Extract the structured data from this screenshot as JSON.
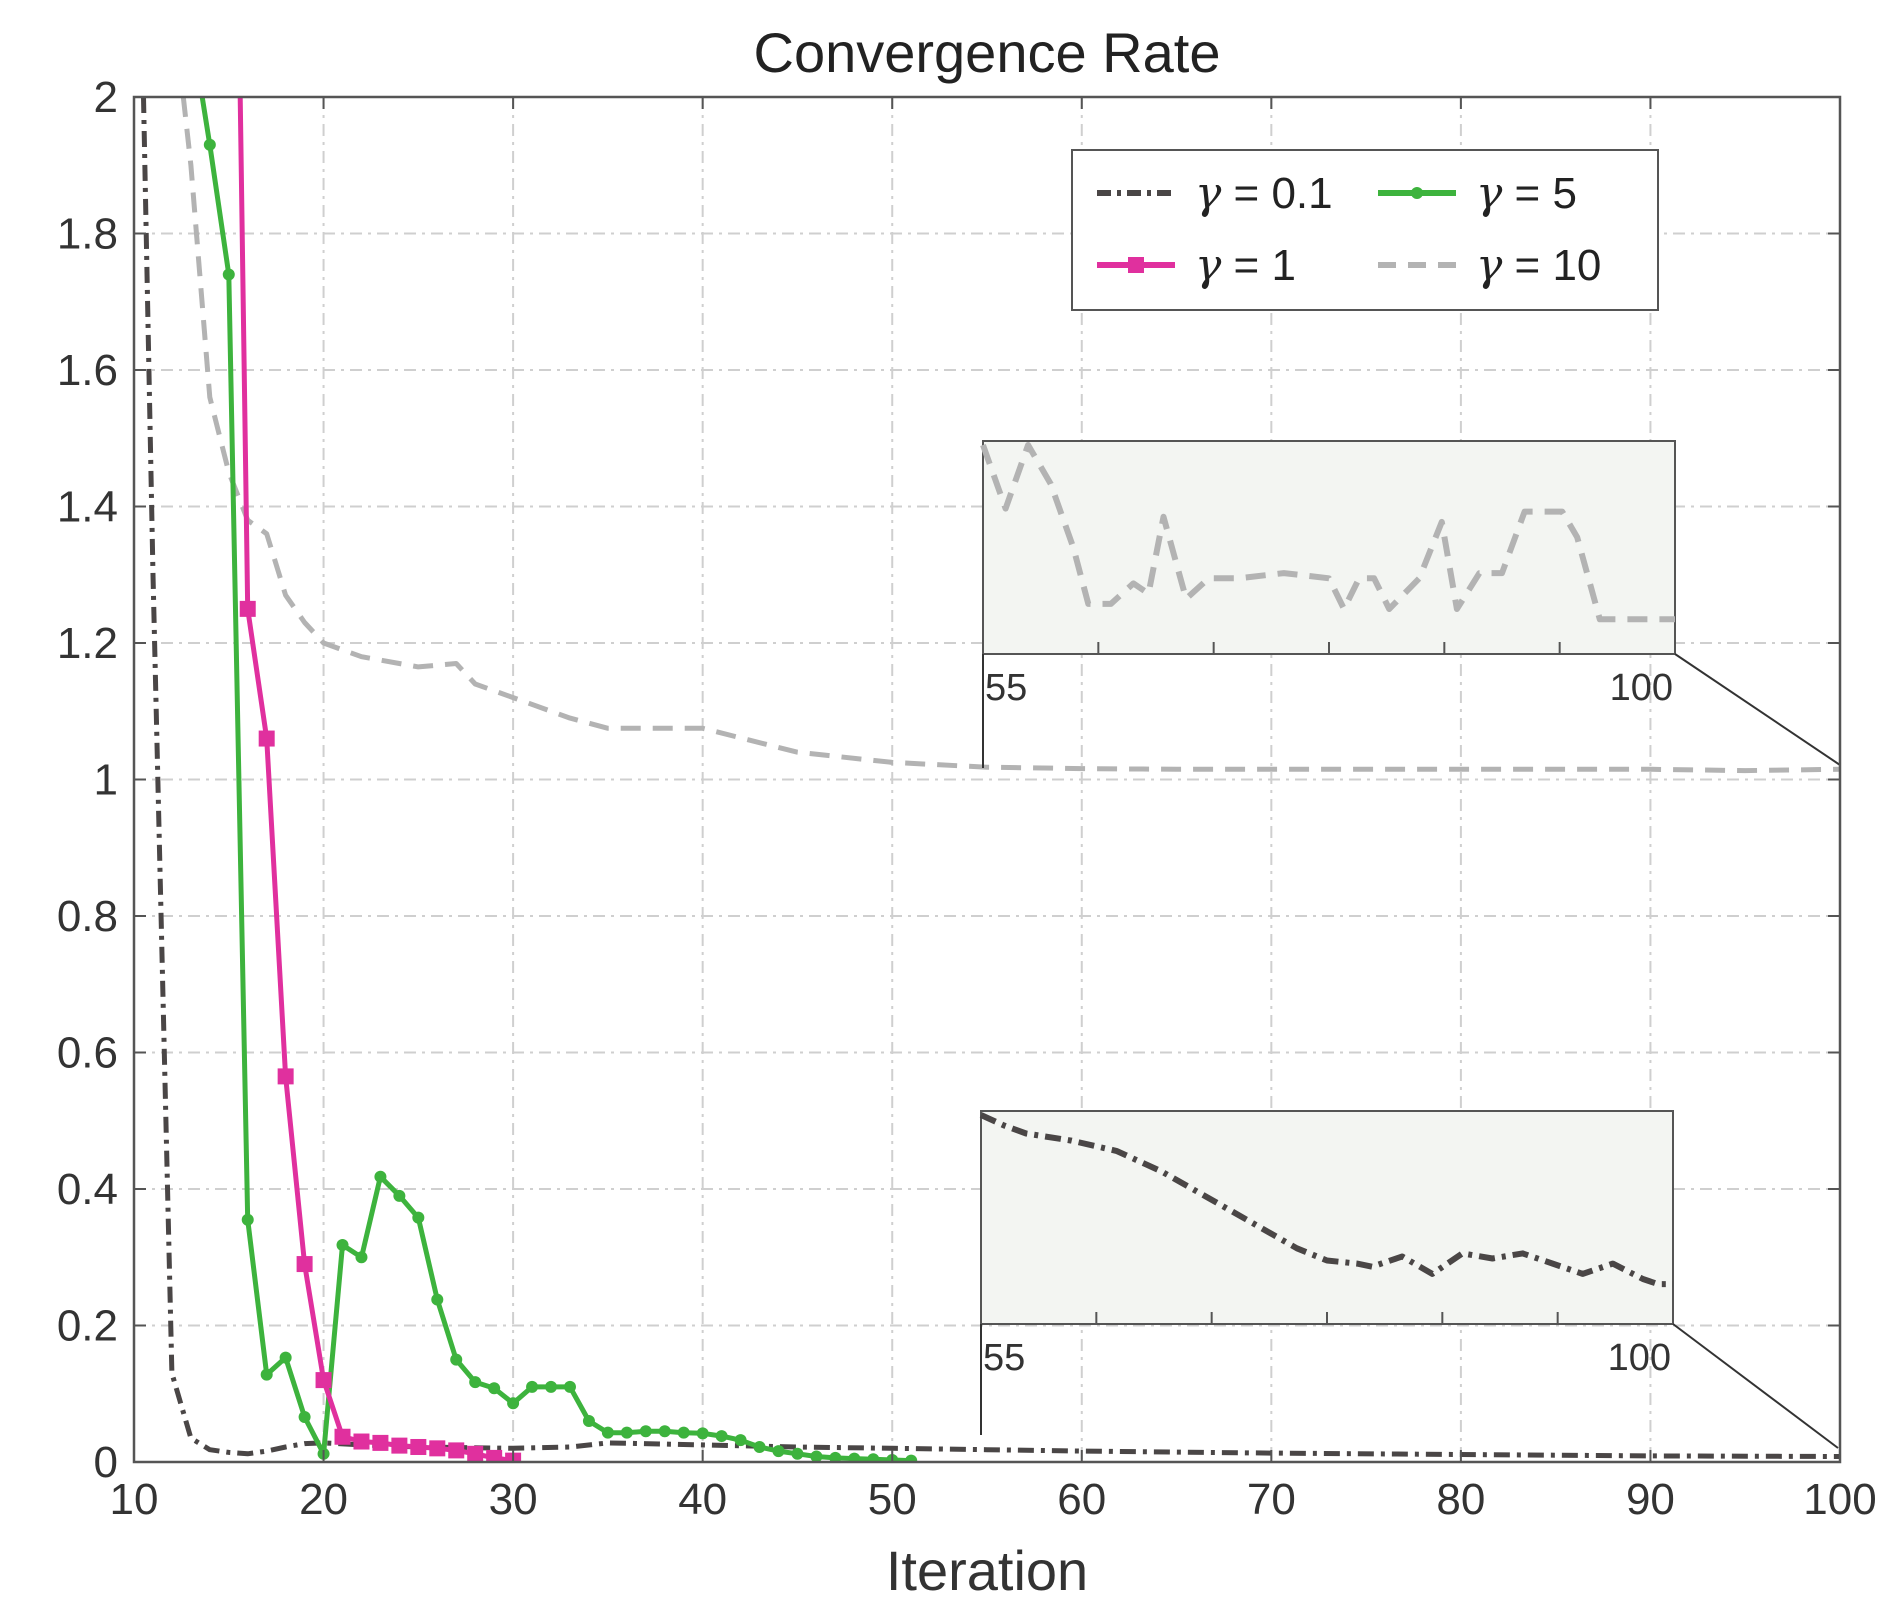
{
  "chart_data": {
    "type": "line",
    "title": "Convergence Rate",
    "xlabel": "Iteration",
    "ylabel": "",
    "xlim": [
      10,
      100
    ],
    "ylim": [
      0,
      2
    ],
    "xticks": [
      10,
      20,
      30,
      40,
      50,
      60,
      70,
      80,
      90,
      100
    ],
    "yticks": [
      {
        "v": 0,
        "label": "0"
      },
      {
        "v": 0.2,
        "label": "0.2"
      },
      {
        "v": 0.4,
        "label": "0.4"
      },
      {
        "v": 0.6,
        "label": "0.6"
      },
      {
        "v": 0.8,
        "label": "0.8"
      },
      {
        "v": 1,
        "label": "1"
      },
      {
        "v": 1.2,
        "label": "1.2"
      },
      {
        "v": 1.4,
        "label": "1.4"
      },
      {
        "v": 1.6,
        "label": "1.6"
      },
      {
        "v": 1.8,
        "label": "1.8"
      },
      {
        "v": 2,
        "label": "2"
      }
    ],
    "grid": true,
    "legend_position": "top-right",
    "series": [
      {
        "name": "γ = 0.1",
        "gamma": "γ",
        "rest": " = 0.1",
        "color": "#4a4646",
        "style": "dashdot",
        "x": [
          10.5,
          11,
          12,
          13,
          14,
          15,
          16,
          17,
          18,
          19,
          20,
          22,
          25,
          30,
          33,
          35,
          40,
          45,
          50,
          55,
          60,
          70,
          80,
          90,
          100
        ],
        "y": [
          2.0,
          1.3,
          0.13,
          0.035,
          0.018,
          0.014,
          0.012,
          0.016,
          0.022,
          0.027,
          0.028,
          0.025,
          0.022,
          0.02,
          0.022,
          0.028,
          0.025,
          0.022,
          0.02,
          0.018,
          0.016,
          0.013,
          0.011,
          0.009,
          0.008
        ]
      },
      {
        "name": "γ = 1",
        "gamma": "γ",
        "rest": " = 1",
        "color": "#e0309e",
        "style": "solid",
        "marker": "square",
        "x": [
          15.6,
          16,
          17,
          18,
          19,
          20,
          21,
          22,
          23,
          24,
          25,
          26,
          27,
          28,
          29,
          30
        ],
        "y": [
          2.0,
          1.25,
          1.06,
          0.565,
          0.29,
          0.12,
          0.037,
          0.03,
          0.028,
          0.024,
          0.022,
          0.02,
          0.017,
          0.012,
          0.006,
          0.002
        ],
        "marker_from": 1
      },
      {
        "name": "γ = 5",
        "gamma": "γ",
        "rest": " = 5",
        "color": "#3db33d",
        "style": "solid",
        "marker": "circle",
        "x": [
          13.6,
          14,
          15,
          16,
          17,
          18,
          19,
          20,
          21,
          22,
          23,
          24,
          25,
          26,
          27,
          28,
          29,
          30,
          31,
          32,
          33,
          34,
          35,
          36,
          37,
          38,
          39,
          40,
          41,
          42,
          43,
          44,
          45,
          46,
          47,
          48,
          49,
          50,
          51
        ],
        "y": [
          2.0,
          1.93,
          1.74,
          0.355,
          0.128,
          0.153,
          0.066,
          0.012,
          0.318,
          0.3,
          0.418,
          0.39,
          0.358,
          0.238,
          0.15,
          0.117,
          0.108,
          0.086,
          0.11,
          0.11,
          0.11,
          0.06,
          0.043,
          0.043,
          0.045,
          0.045,
          0.043,
          0.042,
          0.038,
          0.032,
          0.022,
          0.016,
          0.012,
          0.008,
          0.006,
          0.005,
          0.004,
          0.003,
          0.002
        ],
        "marker_from": 1
      },
      {
        "name": "γ = 10",
        "gamma": "γ",
        "rest": " = 10",
        "color": "#b3b3b3",
        "style": "dashed",
        "x": [
          12.6,
          13,
          14,
          15,
          16,
          17,
          18,
          19,
          20,
          22,
          25,
          27,
          28,
          30,
          33,
          35,
          40,
          45,
          50,
          55,
          60,
          65,
          70,
          75,
          80,
          85,
          90,
          95,
          100
        ],
        "y": [
          2.0,
          1.9,
          1.56,
          1.45,
          1.38,
          1.36,
          1.27,
          1.23,
          1.2,
          1.18,
          1.165,
          1.17,
          1.14,
          1.12,
          1.09,
          1.075,
          1.075,
          1.04,
          1.025,
          1.018,
          1.016,
          1.015,
          1.015,
          1.015,
          1.015,
          1.015,
          1.015,
          1.013,
          1.015
        ]
      }
    ],
    "insets": [
      {
        "name": "inset-gamma-10",
        "series_ref": "γ = 10",
        "xlim": [
          55,
          101
        ],
        "tick_labels": [
          "55",
          "100"
        ],
        "x": [
          55,
          56.5,
          58,
          59.5,
          61,
          62,
          63.5,
          65,
          66,
          67,
          68.5,
          70,
          72,
          75,
          78,
          79,
          80,
          81,
          82,
          84,
          85.5,
          86.5,
          88,
          89.5,
          91,
          92.5,
          93.5,
          94.5,
          96,
          97.5,
          99,
          100,
          101
        ],
        "y": [
          1.0,
          0.38,
          1.0,
          0.62,
          0.0,
          -0.55,
          -0.55,
          -0.35,
          -0.45,
          0.3,
          -0.5,
          -0.3,
          -0.3,
          -0.25,
          -0.3,
          -0.6,
          -0.3,
          -0.3,
          -0.6,
          -0.3,
          0.25,
          -0.6,
          -0.25,
          -0.25,
          0.35,
          0.35,
          0.35,
          0.1,
          -0.7,
          -0.7,
          -0.7,
          -0.7,
          -0.7
        ]
      },
      {
        "name": "inset-gamma-0.1",
        "series_ref": "γ = 0.1",
        "xlim": [
          55,
          101
        ],
        "tick_labels": [
          "55",
          "100"
        ],
        "x": [
          55,
          56.5,
          58,
          61,
          64,
          67,
          70,
          73,
          76,
          78,
          80,
          81,
          83,
          85,
          87,
          89,
          91,
          93,
          95,
          97,
          99,
          100,
          101
        ],
        "y": [
          1.0,
          0.9,
          0.82,
          0.75,
          0.65,
          0.45,
          0.2,
          -0.05,
          -0.3,
          -0.42,
          -0.45,
          -0.48,
          -0.38,
          -0.55,
          -0.35,
          -0.4,
          -0.35,
          -0.45,
          -0.55,
          -0.45,
          -0.6,
          -0.65,
          -0.65
        ]
      }
    ]
  }
}
